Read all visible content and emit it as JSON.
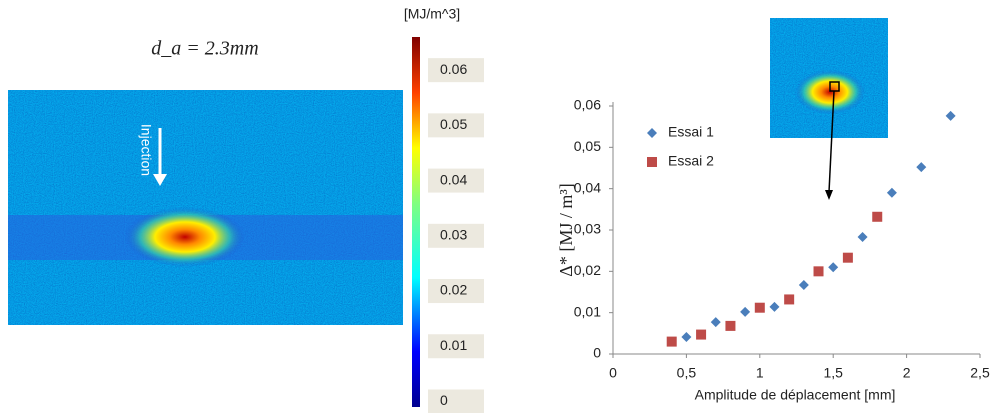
{
  "chart_data": [
    {
      "type": "heatmap-image",
      "title": "d_a = 2.3mm",
      "annotation": "Injection",
      "colorbar_label": "[MJ/m^3]",
      "clim": [
        -0.001,
        0.066
      ],
      "cticks": [
        0,
        0.01,
        0.02,
        0.03,
        0.04,
        0.05,
        0.06
      ]
    },
    {
      "type": "scatter",
      "xlabel": "Amplitude de déplacement [mm]",
      "ylabel": "Δ* [MJ / m³]",
      "xlim": [
        0,
        2.5
      ],
      "ylim": [
        0,
        0.06
      ],
      "xticks": [
        0,
        {
          "value": 0.5,
          "label": "0,5"
        },
        1,
        {
          "value": 1.5,
          "label": "1,5"
        },
        2,
        {
          "value": 2.5,
          "label": "2,5"
        }
      ],
      "yticks": [
        0,
        {
          "value": 0.01,
          "label": "0,01"
        },
        {
          "value": 0.02,
          "label": "0,02"
        },
        {
          "value": 0.03,
          "label": "0,03"
        },
        {
          "value": 0.04,
          "label": "0,04"
        },
        {
          "value": 0.05,
          "label": "0,05"
        },
        {
          "value": 0.06,
          "label": "0,06"
        }
      ],
      "series": [
        {
          "name": "Essai 1",
          "color": "#4a7ebb",
          "marker": "diamond",
          "x": [
            0.5,
            0.7,
            0.9,
            1.1,
            1.3,
            1.5,
            1.7,
            1.9,
            2.1,
            2.3
          ],
          "values": [
            0.0041,
            0.0077,
            0.0102,
            0.0114,
            0.0167,
            0.021,
            0.0283,
            0.039,
            0.0452,
            0.0576
          ]
        },
        {
          "name": "Essai 2",
          "color": "#be4b48",
          "marker": "square",
          "x": [
            0.4,
            0.6,
            0.8,
            1.0,
            1.2,
            1.4,
            1.6,
            1.8
          ],
          "values": [
            0.003,
            0.0047,
            0.0068,
            0.0112,
            0.0132,
            0.02,
            0.0233,
            0.0332
          ]
        }
      ]
    }
  ]
}
